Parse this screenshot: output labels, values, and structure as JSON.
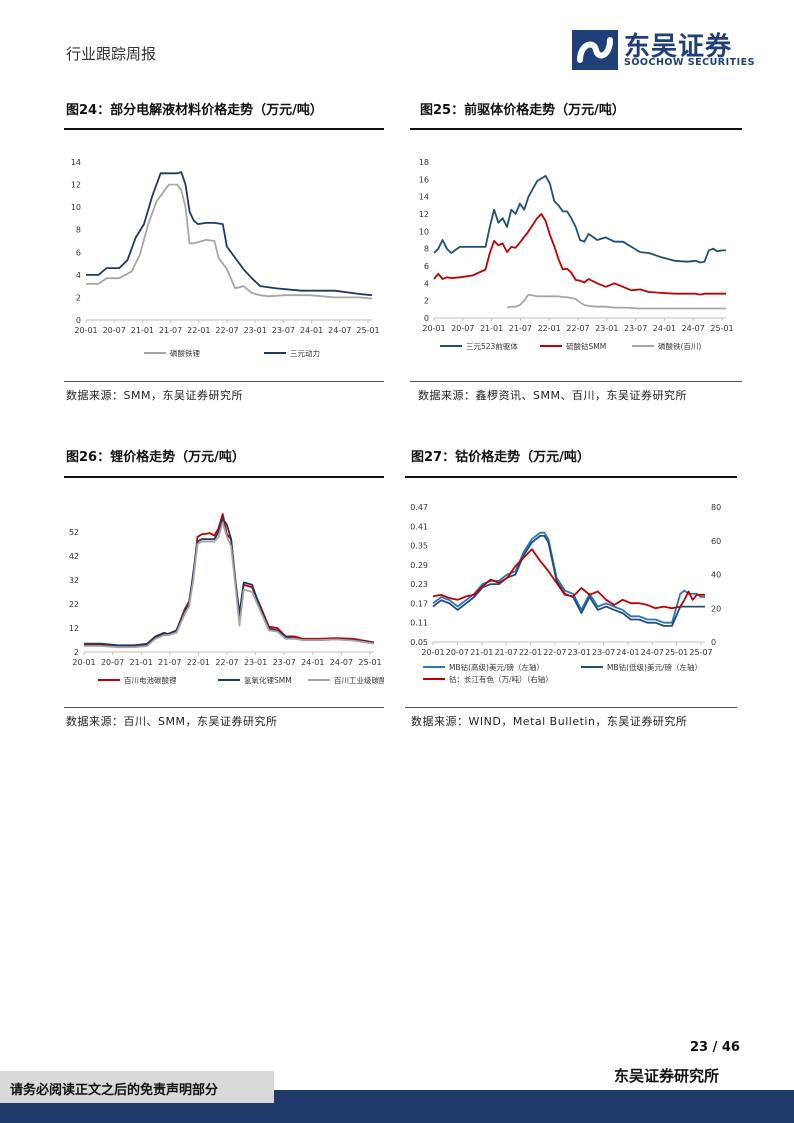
{
  "header": {
    "report_type": "行业跟踪周报",
    "logo_cn": "东吴证券",
    "logo_en": "SOOCHOW SECURITIES"
  },
  "figures": {
    "f24": {
      "title": "图24：部分电解液材料价格走势（万元/吨）",
      "source": "数据来源：SMM，东吴证券研究所"
    },
    "f25": {
      "title": "图25：前驱体价格走势（万元/吨）",
      "source": "数据来源：鑫椤资讯、SMM、百川，东吴证券研究所"
    },
    "f26": {
      "title": "图26：锂价格走势（万元/吨）",
      "source": "数据来源：百川、SMM，东吴证券研究所"
    },
    "f27": {
      "title": "图27：钴价格走势（万元/吨）",
      "source": "数据来源：WIND，Metal Bulletin，东吴证券研究所"
    }
  },
  "chart_data": [
    {
      "id": "f24",
      "type": "line",
      "xticks": [
        "20-01",
        "20-07",
        "21-01",
        "21-07",
        "22-01",
        "22-07",
        "23-01",
        "23-07",
        "24-01",
        "24-07",
        "25-01"
      ],
      "xrange": [
        0,
        69
      ],
      "ylim": [
        0,
        14
      ],
      "yticks": [
        0,
        2,
        4,
        6,
        8,
        10,
        12,
        14
      ],
      "series": [
        {
          "name": "磷酸铁锂",
          "color": "#a6a6a6",
          "x": [
            0,
            3,
            5,
            8,
            11,
            13,
            15,
            17,
            19,
            20,
            21,
            22,
            23,
            24,
            25,
            26,
            29,
            31,
            32,
            34,
            36,
            38,
            40,
            42,
            44,
            48,
            54,
            60,
            66,
            69
          ],
          "y": [
            3.2,
            3.2,
            3.7,
            3.7,
            4.3,
            5.8,
            8.5,
            10.5,
            11.5,
            12,
            12,
            12,
            11.5,
            10,
            6.8,
            6.8,
            7.1,
            7,
            5.5,
            4.5,
            2.8,
            3,
            2.4,
            2.2,
            2.1,
            2.2,
            2.2,
            2,
            2,
            1.9
          ]
        },
        {
          "name": "三元动力",
          "color": "#1f3864",
          "x": [
            0,
            3,
            5,
            8,
            10,
            12,
            14,
            16,
            18,
            20,
            22,
            23,
            24,
            25,
            26,
            27,
            29,
            31,
            33,
            34,
            36,
            38,
            40,
            42,
            46,
            52,
            60,
            66,
            69
          ],
          "y": [
            4,
            4,
            4.6,
            4.6,
            5.3,
            7.3,
            8.5,
            11,
            13,
            13,
            13,
            13.1,
            12,
            9.6,
            8.8,
            8.5,
            8.6,
            8.6,
            8.5,
            6.5,
            5.5,
            4.5,
            3.7,
            3,
            2.8,
            2.6,
            2.6,
            2.3,
            2.2
          ]
        }
      ]
    },
    {
      "id": "f25",
      "type": "line",
      "xticks": [
        "20-01",
        "20-07",
        "21-01",
        "21-07",
        "22-01",
        "22-07",
        "23-01",
        "23-07",
        "24-01",
        "24-07",
        "25-01"
      ],
      "xrange": [
        0,
        68
      ],
      "ylim": [
        0,
        18
      ],
      "yticks": [
        0,
        2,
        4,
        6,
        8,
        10,
        12,
        14,
        16,
        18
      ],
      "series": [
        {
          "name": "三元523前驱体",
          "color": "#1f4e79",
          "x": [
            0,
            1,
            2,
            3,
            4,
            6,
            9,
            12,
            13,
            14,
            15,
            16,
            17,
            18,
            19,
            20,
            21,
            22,
            24,
            26,
            27,
            28,
            29,
            30,
            31,
            32,
            33,
            34,
            35,
            36,
            38,
            40,
            42,
            44,
            46,
            48,
            50,
            53,
            56,
            59,
            61,
            62,
            63,
            64,
            65,
            66,
            67,
            68
          ],
          "y": [
            7.5,
            8,
            9,
            8,
            7.5,
            8.2,
            8.2,
            8.2,
            10.5,
            12.5,
            11,
            11.5,
            10.5,
            12.5,
            12,
            13.2,
            12.5,
            14,
            15.8,
            16.4,
            15.5,
            13.5,
            13,
            12.3,
            12.3,
            11.5,
            10.5,
            9,
            8.8,
            9.7,
            9,
            9.3,
            8.8,
            8.8,
            8.2,
            7.6,
            7.5,
            7,
            6.6,
            6.5,
            6.6,
            6.4,
            6.5,
            7.8,
            8.0,
            7.7,
            7.8,
            7.8
          ]
        },
        {
          "name": "硫酸钴SMM",
          "color": "#c00000",
          "x": [
            0,
            1,
            2,
            3,
            4,
            6,
            9,
            12,
            13,
            14,
            15,
            16,
            17,
            18,
            19,
            20,
            22,
            24,
            25,
            26,
            27,
            28,
            29,
            30,
            31,
            32,
            33,
            34,
            35,
            36,
            38,
            40,
            42,
            44,
            46,
            48,
            50,
            53,
            56,
            59,
            61,
            62,
            63,
            64,
            65,
            66,
            67,
            68
          ],
          "y": [
            4.5,
            5.1,
            4.5,
            4.7,
            4.6,
            4.7,
            4.9,
            5.6,
            7.5,
            8.9,
            8.4,
            8.6,
            7.6,
            8.2,
            8.1,
            8.7,
            10,
            11.5,
            12,
            11.2,
            9.6,
            8.3,
            6.8,
            5.6,
            5.7,
            5.2,
            4.4,
            4.3,
            4.1,
            4.5,
            4,
            3.6,
            4,
            3.6,
            3.2,
            3.3,
            3.0,
            2.9,
            2.8,
            2.8,
            2.8,
            2.7,
            2.8,
            2.8,
            2.8,
            2.8,
            2.8,
            2.8
          ]
        },
        {
          "name": "磷酸铁(百川)",
          "color": "#a6a6a6",
          "x": [
            17,
            18,
            19,
            20,
            21,
            22,
            24,
            26,
            28,
            29,
            30,
            31,
            32,
            33,
            34,
            35,
            36,
            38,
            40,
            42,
            44,
            48,
            52,
            56,
            60,
            64,
            68
          ],
          "y": [
            1.2,
            1.3,
            1.3,
            1.5,
            2,
            2.7,
            2.5,
            2.5,
            2.5,
            2.5,
            2.4,
            2.4,
            2.3,
            2.2,
            1.8,
            1.5,
            1.4,
            1.3,
            1.3,
            1.2,
            1.2,
            1.1,
            1.1,
            1.1,
            1.1,
            1.1,
            1.1
          ]
        }
      ]
    },
    {
      "id": "f26",
      "type": "line",
      "xticks": [
        "20-01",
        "20-07",
        "21-01",
        "21-07",
        "22-01",
        "22-07",
        "23-01",
        "23-07",
        "24-01",
        "24-07",
        "25-01"
      ],
      "xrange": [
        0,
        69
      ],
      "ylim": [
        2,
        62
      ],
      "yticks": [
        2,
        12,
        22,
        32,
        42,
        52
      ],
      "series": [
        {
          "name": "百川电池碳酸锂",
          "color": "#c00000",
          "x": [
            0,
            4,
            8,
            12,
            15,
            17,
            19,
            20,
            22,
            24,
            25,
            26,
            27,
            28,
            30,
            31,
            32,
            33,
            34,
            35,
            36,
            37,
            38,
            40,
            42,
            44,
            46,
            48,
            50,
            52,
            56,
            60,
            64,
            69
          ],
          "y": [
            5,
            5,
            4.5,
            4.5,
            5,
            8,
            9.5,
            9.5,
            11,
            20,
            23,
            34,
            50,
            51,
            51.5,
            50.5,
            53.5,
            59.5,
            51,
            49,
            32,
            16,
            30,
            29,
            21,
            12.5,
            12,
            8.5,
            8.5,
            7.5,
            7.5,
            7.8,
            7.5,
            6
          ]
        },
        {
          "name": "氢氧化锂SMM",
          "color": "#1f3864",
          "x": [
            0,
            4,
            8,
            12,
            15,
            17,
            19,
            20,
            22,
            24,
            25,
            26,
            27,
            28,
            30,
            31,
            32,
            33,
            34,
            35,
            36,
            37,
            38,
            40,
            42,
            44,
            46,
            48,
            50,
            52,
            56,
            60,
            64,
            69
          ],
          "y": [
            5.5,
            5.5,
            4.8,
            4.8,
            5.4,
            8.5,
            10,
            9.5,
            11,
            19,
            22,
            35,
            48,
            49,
            49,
            49,
            52,
            57.5,
            55,
            49,
            32,
            18,
            31,
            30,
            20,
            11.8,
            11,
            8.2,
            7.8,
            7,
            7,
            7.2,
            7,
            5.8
          ]
        },
        {
          "name": "百川工业级碳酸锂",
          "color": "#a6a6a6",
          "x": [
            0,
            4,
            8,
            12,
            15,
            17,
            19,
            20,
            22,
            24,
            25,
            26,
            27,
            28,
            30,
            31,
            32,
            33,
            34,
            35,
            36,
            37,
            38,
            40,
            42,
            44,
            46,
            48,
            50,
            52,
            56,
            60,
            64,
            69
          ],
          "y": [
            4.5,
            4.5,
            4,
            4,
            4.5,
            7.5,
            9,
            9,
            10,
            18,
            21,
            32,
            47,
            48,
            48,
            48,
            50,
            56,
            50,
            46,
            30,
            13,
            28,
            27,
            19,
            11,
            10.5,
            7.5,
            7.5,
            7,
            7,
            7.2,
            6.8,
            5.5
          ]
        }
      ]
    },
    {
      "id": "f27",
      "type": "line",
      "xticks": [
        "20-01",
        "20-07",
        "21-01",
        "21-07",
        "22-01",
        "22-07",
        "23-01",
        "23-07",
        "24-01",
        "24-07",
        "25-01",
        "25-07"
      ],
      "xrange": [
        0,
        66
      ],
      "ylim_left": [
        0.05,
        0.47
      ],
      "yticks_left": [
        0.05,
        0.11,
        0.17,
        0.23,
        0.29,
        0.35,
        0.41,
        0.47
      ],
      "ylim_right": [
        0,
        80
      ],
      "yticks_right": [
        0,
        20,
        40,
        60,
        80
      ],
      "series": [
        {
          "name": "MB钴(高级)美元/磅（左轴）",
          "color": "#2e75b6",
          "axis": "left",
          "x": [
            0,
            2,
            4,
            6,
            8,
            10,
            12,
            14,
            16,
            18,
            20,
            22,
            24,
            25,
            26,
            27,
            28,
            30,
            32,
            34,
            36,
            38,
            40,
            42,
            44,
            46,
            48,
            50,
            52,
            54,
            56,
            58,
            60,
            61,
            62,
            63,
            64,
            65,
            66
          ],
          "y": [
            0.17,
            0.19,
            0.18,
            0.16,
            0.18,
            0.2,
            0.23,
            0.24,
            0.24,
            0.26,
            0.27,
            0.33,
            0.37,
            0.38,
            0.39,
            0.39,
            0.37,
            0.25,
            0.21,
            0.2,
            0.15,
            0.2,
            0.16,
            0.17,
            0.16,
            0.15,
            0.13,
            0.13,
            0.12,
            0.12,
            0.11,
            0.11,
            0.2,
            0.21,
            0.2,
            0.2,
            0.2,
            0.19,
            0.19
          ]
        },
        {
          "name": "MB钴(低级)美元/磅（左轴）",
          "color": "#1f4e79",
          "axis": "left",
          "x": [
            0,
            2,
            4,
            6,
            8,
            10,
            12,
            14,
            16,
            18,
            20,
            22,
            24,
            25,
            26,
            27,
            28,
            30,
            32,
            34,
            36,
            38,
            40,
            42,
            44,
            46,
            48,
            50,
            52,
            54,
            56,
            58,
            60,
            61,
            62,
            63,
            64,
            65,
            66
          ],
          "y": [
            0.16,
            0.18,
            0.17,
            0.15,
            0.17,
            0.19,
            0.22,
            0.23,
            0.23,
            0.25,
            0.26,
            0.32,
            0.36,
            0.37,
            0.38,
            0.38,
            0.36,
            0.24,
            0.2,
            0.19,
            0.14,
            0.19,
            0.15,
            0.16,
            0.15,
            0.14,
            0.12,
            0.12,
            0.11,
            0.11,
            0.1,
            0.1,
            0.16,
            0.16,
            0.16,
            0.16,
            0.16,
            0.16,
            0.16
          ]
        },
        {
          "name": "钴：长江有色（万/吨）（右轴）",
          "color": "#c00000",
          "axis": "right",
          "x": [
            0,
            2,
            4,
            6,
            8,
            10,
            12,
            14,
            16,
            18,
            20,
            22,
            24,
            26,
            28,
            30,
            32,
            34,
            36,
            38,
            40,
            42,
            44,
            46,
            48,
            50,
            52,
            54,
            56,
            58,
            60,
            61,
            62,
            63,
            64,
            65,
            66
          ],
          "y": [
            27,
            28,
            26,
            25,
            27,
            28,
            33,
            37,
            35,
            38,
            45,
            50,
            55,
            48,
            42,
            35,
            28,
            27,
            32,
            28,
            30,
            25,
            22,
            25,
            23,
            23,
            22,
            20,
            21,
            20,
            21,
            25,
            30,
            25,
            28,
            28,
            28
          ]
        }
      ]
    }
  ],
  "footer": {
    "page": "23 / 46",
    "disclaimer": "请务必阅读正文之后的免责声明部分",
    "institute": "东吴证券研究所"
  }
}
